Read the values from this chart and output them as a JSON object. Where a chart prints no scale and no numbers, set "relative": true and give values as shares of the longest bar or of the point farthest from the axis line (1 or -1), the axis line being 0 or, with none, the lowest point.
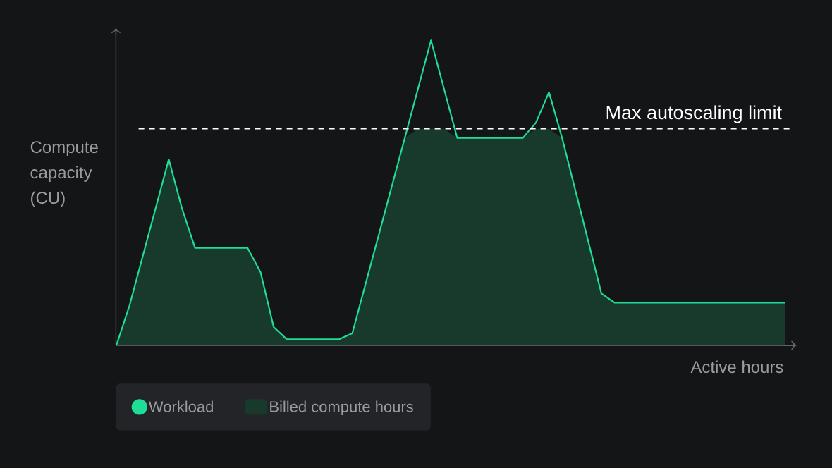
{
  "chart_data": {
    "type": "line",
    "relative": true,
    "xlabel": "Active hours",
    "ylabel": "Compute capacity (CU)",
    "categories": [
      null,
      null,
      null,
      null,
      null,
      null,
      null,
      null,
      null,
      null,
      null,
      null,
      null,
      null,
      null,
      null,
      null,
      null,
      null,
      null,
      null,
      null,
      null,
      null,
      null,
      null,
      null,
      null,
      null,
      null,
      null,
      null,
      null,
      null,
      null,
      null,
      null,
      null,
      null,
      null,
      null,
      null,
      null,
      null,
      null,
      null,
      null,
      null,
      null,
      null,
      null,
      null
    ],
    "series": [
      {
        "name": "Billed compute hours",
        "type": "area",
        "color": "#173a2d",
        "values": [
          0,
          0.13,
          0.29,
          0.45,
          0.61,
          0.45,
          0.32,
          0.32,
          0.32,
          0.32,
          0.32,
          0.24,
          0.06,
          0.02,
          0.02,
          0.02,
          0.02,
          0.02,
          0.04,
          0.2,
          0.36,
          0.52,
          0.68,
          0.71,
          0.71,
          0.71,
          0.68,
          0.68,
          0.68,
          0.68,
          0.68,
          0.68,
          0.71,
          0.71,
          0.68,
          0.51,
          0.34,
          0.17,
          0.14,
          0.14,
          0.14,
          0.14,
          0.14,
          0.14,
          0.14,
          0.14,
          0.14,
          0.14,
          0.14,
          0.14,
          0.14,
          0.14
        ]
      },
      {
        "name": "Workload",
        "type": "line",
        "color": "#1fdc97",
        "values": [
          0,
          0.13,
          0.29,
          0.45,
          0.61,
          0.45,
          0.32,
          0.32,
          0.32,
          0.32,
          0.32,
          0.24,
          0.06,
          0.02,
          0.02,
          0.02,
          0.02,
          0.02,
          0.04,
          0.2,
          0.36,
          0.52,
          0.68,
          0.84,
          1.0,
          0.84,
          0.68,
          0.68,
          0.68,
          0.68,
          0.68,
          0.68,
          0.73,
          0.83,
          0.68,
          0.51,
          0.34,
          0.17,
          0.14,
          0.14,
          0.14,
          0.14,
          0.14,
          0.14,
          0.14,
          0.14,
          0.14,
          0.14,
          0.14,
          0.14,
          0.14,
          0.14
        ]
      }
    ],
    "ref_lines": [
      {
        "axis": "y",
        "value": 0.71,
        "label": "Max autoscaling limit",
        "color": "#ffffff",
        "line_style": "dashed"
      }
    ],
    "legend": "bottom",
    "marker": "none",
    "line_style": "solid"
  }
}
